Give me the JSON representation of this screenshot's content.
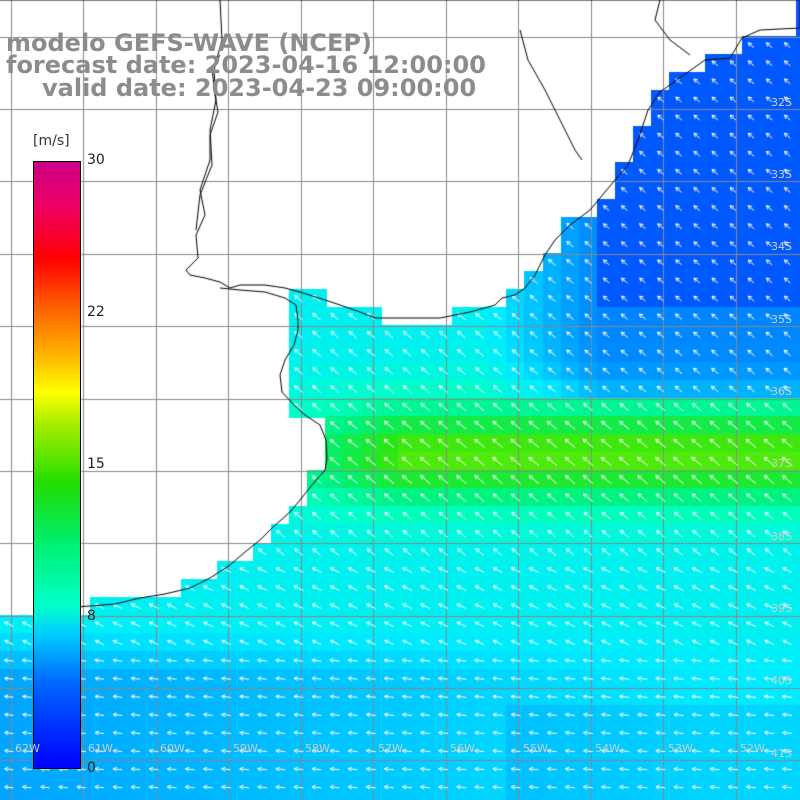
{
  "title": {
    "line1": "modelo GEFS-WAVE (NCEP)",
    "line2": "forecast date: 2023-04-16 12:00:00",
    "line3": "valid date: 2023-04-23 09:00:00"
  },
  "colorbar": {
    "unit": "[m/s]",
    "ticks": [
      "30",
      "22",
      "15",
      "8",
      "0"
    ],
    "min": 0,
    "max": 30,
    "colors": [
      "#0000ff",
      "#0088ff",
      "#00eeff",
      "#00ff88",
      "#33dd00",
      "#ffff00",
      "#ff8800",
      "#ff0000",
      "#cc0088"
    ]
  },
  "map": {
    "lat_labels": [
      "32S",
      "33S",
      "34S",
      "35S",
      "36S",
      "37S",
      "38S",
      "39S",
      "40S",
      "41S"
    ],
    "lon_labels": [
      "62W",
      "61W",
      "60W",
      "59W",
      "58W",
      "57W",
      "56W",
      "55W",
      "54W",
      "53W",
      "52W"
    ],
    "land_color": "#ffffff",
    "grid_color": "#888888",
    "coast_color": "#000000",
    "arrow_color": "#ffffff",
    "wind_field_note_colors": {
      "high": "#22e600",
      "mid": "#00f0f0",
      "low": "#1f6dff"
    }
  }
}
